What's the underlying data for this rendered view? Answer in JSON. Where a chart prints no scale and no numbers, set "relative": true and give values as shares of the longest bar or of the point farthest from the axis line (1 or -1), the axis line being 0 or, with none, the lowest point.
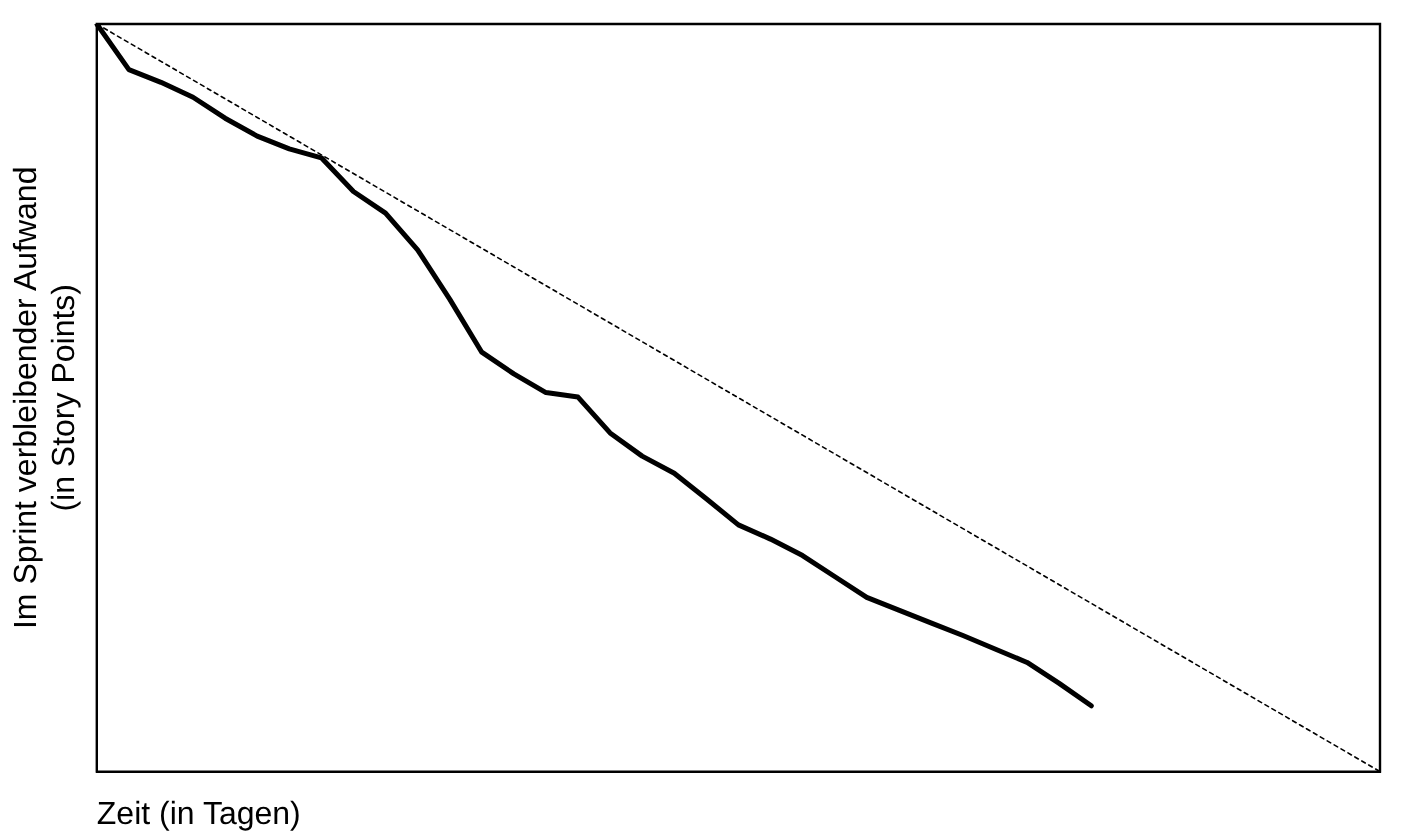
{
  "chart_data": {
    "type": "line",
    "relative": true,
    "xlabel": "Zeit (in Tagen)",
    "ylabel": "Im Sprint verbleibender Aufwand\n(in Story Points)",
    "grid": false,
    "legend": false,
    "marker": "none",
    "categories": [
      null,
      null,
      null,
      null,
      null,
      null,
      null,
      null,
      null,
      null,
      null,
      null,
      null,
      null,
      null,
      null,
      null,
      null,
      null,
      null,
      null,
      null,
      null,
      null,
      null,
      null,
      null,
      null,
      null,
      null,
      null,
      null,
      null,
      null,
      null,
      null,
      null,
      null,
      null,
      null,
      null
    ],
    "series": [
      {
        "color": "#000000",
        "line_style": "dotted",
        "values": [
          1,
          0.975,
          0.95,
          0.925,
          0.9,
          0.875,
          0.85,
          0.825,
          0.8,
          0.775,
          0.75,
          0.725,
          0.7,
          0.675,
          0.65,
          0.625,
          0.6,
          0.575,
          0.55,
          0.525,
          0.5,
          0.475,
          0.45,
          0.425,
          0.4,
          0.375,
          0.35,
          0.325,
          0.3,
          0.275,
          0.25,
          0.225,
          0.2,
          0.175,
          0.15,
          0.125,
          0.1,
          0.075,
          0.05,
          0.025,
          0
        ]
      },
      {
        "color": "#000000",
        "line_style": "solid",
        "values": [
          1,
          0.939,
          0.922,
          0.902,
          0.874,
          0.85,
          0.833,
          0.821,
          0.776,
          0.747,
          0.698,
          0.632,
          0.561,
          0.532,
          0.507,
          0.501,
          0.453,
          0.422,
          0.399,
          0.365,
          0.33,
          0.311,
          0.289,
          0.261,
          0.233,
          0.216,
          0.199,
          0.182,
          0.164,
          0.146,
          0.118,
          0.088,
          null,
          null,
          null,
          null,
          null,
          null,
          null,
          null,
          null
        ]
      }
    ]
  }
}
